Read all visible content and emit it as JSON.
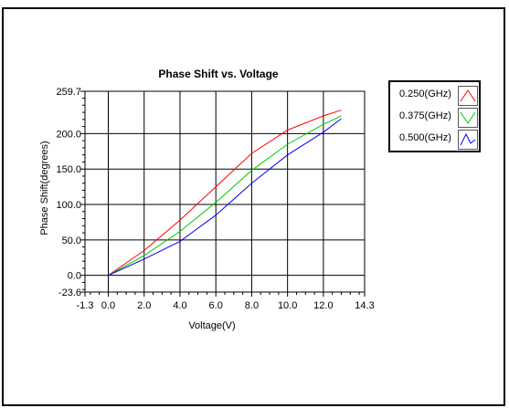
{
  "chart_data": {
    "type": "line",
    "title": "Phase Shift vs. Voltage",
    "xlabel": "Voltage(V)",
    "ylabel": "Phase Shift(degrees)",
    "xlim": [
      -1.3,
      14.3
    ],
    "ylim": [
      -23.6,
      259.7
    ],
    "xticks": [
      "-1.3",
      "0.0",
      "2.0",
      "4.0",
      "6.0",
      "8.0",
      "10.0",
      "12.0",
      "14.3"
    ],
    "xtick_values": [
      -1.3,
      0,
      2,
      4,
      6,
      8,
      10,
      12,
      14.3
    ],
    "yticks": [
      "-23.6",
      "0.0",
      "50.0",
      "100.0",
      "150.0",
      "200.0",
      "259.7"
    ],
    "ytick_values": [
      -23.6,
      0,
      50,
      100,
      150,
      200,
      259.7
    ],
    "grid": true,
    "legend_position": "top-right outside",
    "series": [
      {
        "name": "0.250(GHz)",
        "color": "#ff0000",
        "x": [
          0,
          2,
          4,
          6,
          8,
          10,
          12,
          13
        ],
        "y": [
          0,
          35,
          78,
          125,
          172,
          205,
          225,
          233
        ]
      },
      {
        "name": "0.375(GHz)",
        "color": "#00cc00",
        "x": [
          0,
          2,
          4,
          6,
          8,
          10,
          12,
          13
        ],
        "y": [
          0,
          28,
          62,
          103,
          148,
          185,
          213,
          225
        ]
      },
      {
        "name": "0.500(GHz)",
        "color": "#0000ff",
        "x": [
          0,
          2,
          4,
          6,
          8,
          10,
          12,
          13
        ],
        "y": [
          0,
          23,
          48,
          85,
          130,
          170,
          202,
          221
        ]
      }
    ]
  }
}
